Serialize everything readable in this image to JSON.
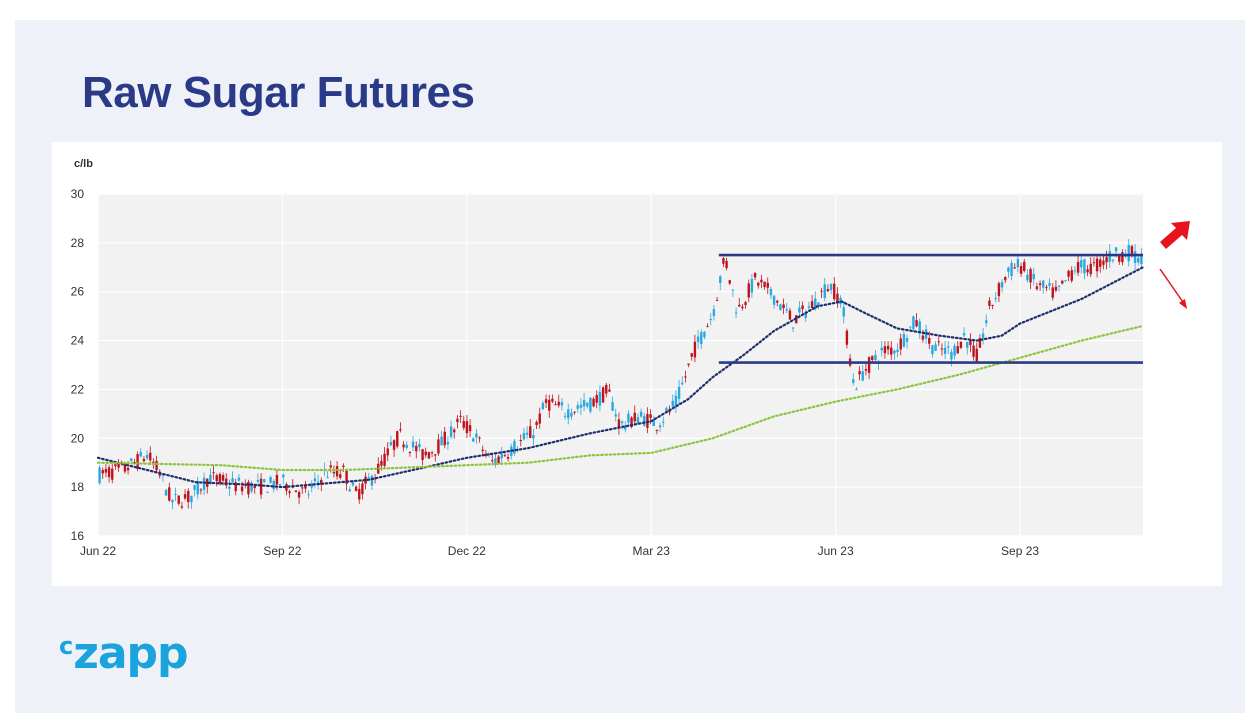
{
  "page": {
    "title": "Raw Sugar Futures",
    "logo_prefix": "c",
    "logo_main": "zapp",
    "logo_color": "#1aa3dc",
    "title_color": "#2b3a87"
  },
  "chart_data": {
    "type": "candlestick",
    "title": "",
    "ylabel": "c/lb",
    "xlabel": "",
    "ylim": [
      16,
      30
    ],
    "yticks": [
      16,
      18,
      20,
      22,
      24,
      26,
      28,
      30
    ],
    "xlim": [
      0,
      17
    ],
    "xticks": [
      {
        "label": "Jun 22",
        "value": 0
      },
      {
        "label": "Sep 22",
        "value": 3
      },
      {
        "label": "Dec 22",
        "value": 6
      },
      {
        "label": "Mar 23",
        "value": 9
      },
      {
        "label": "Jun 23",
        "value": 12
      },
      {
        "label": "Sep 23",
        "value": 15
      }
    ],
    "grid": true,
    "colors": {
      "up": "#29a8e0",
      "down": "#c0121b",
      "ma_short": "#1f2f6e",
      "ma_long": "#8cc63f",
      "range_lines": "#2b3a87",
      "arrow_up": "#e8141b",
      "arrow_down": "#e8141b"
    },
    "price_path": [
      [
        0,
        18.5
      ],
      [
        0.4,
        18.7
      ],
      [
        0.8,
        19.3
      ],
      [
        1.0,
        18.6
      ],
      [
        1.2,
        17.4
      ],
      [
        1.5,
        17.6
      ],
      [
        1.8,
        18.4
      ],
      [
        2.2,
        18.1
      ],
      [
        2.6,
        18.0
      ],
      [
        3.0,
        18.2
      ],
      [
        3.4,
        17.7
      ],
      [
        3.7,
        18.6
      ],
      [
        4.0,
        18.6
      ],
      [
        4.2,
        17.7
      ],
      [
        4.5,
        18.5
      ],
      [
        4.9,
        20.1
      ],
      [
        5.3,
        19.3
      ],
      [
        5.6,
        19.8
      ],
      [
        5.9,
        20.7
      ],
      [
        6.1,
        20.2
      ],
      [
        6.4,
        19.0
      ],
      [
        6.8,
        19.7
      ],
      [
        7.1,
        20.3
      ],
      [
        7.3,
        21.5
      ],
      [
        7.6,
        21.1
      ],
      [
        8.0,
        21.4
      ],
      [
        8.3,
        21.9
      ],
      [
        8.5,
        20.5
      ],
      [
        8.8,
        20.9
      ],
      [
        9.1,
        20.6
      ],
      [
        9.4,
        21.4
      ],
      [
        9.7,
        23.6
      ],
      [
        10.0,
        25.1
      ],
      [
        10.2,
        27.4
      ],
      [
        10.4,
        25.2
      ],
      [
        10.7,
        26.5
      ],
      [
        11.0,
        25.8
      ],
      [
        11.3,
        24.8
      ],
      [
        11.6,
        25.4
      ],
      [
        11.9,
        26.3
      ],
      [
        12.1,
        25.6
      ],
      [
        12.3,
        22.1
      ],
      [
        12.5,
        22.9
      ],
      [
        12.8,
        23.6
      ],
      [
        13.0,
        23.7
      ],
      [
        13.3,
        24.8
      ],
      [
        13.6,
        23.7
      ],
      [
        13.9,
        23.5
      ],
      [
        14.1,
        24.2
      ],
      [
        14.3,
        23.3
      ],
      [
        14.5,
        25.3
      ],
      [
        14.8,
        26.8
      ],
      [
        15.0,
        27.1
      ],
      [
        15.3,
        26.2
      ],
      [
        15.6,
        25.9
      ],
      [
        15.9,
        27.0
      ],
      [
        16.2,
        27.0
      ],
      [
        16.5,
        27.5
      ],
      [
        16.8,
        27.6
      ],
      [
        17.0,
        27.3
      ]
    ],
    "series": [
      {
        "values": [
          [
            0,
            19.2
          ],
          [
            1.6,
            18.2
          ],
          [
            2.5,
            18.1
          ],
          [
            3.0,
            18.0
          ],
          [
            4.4,
            18.3
          ],
          [
            5.3,
            18.8
          ],
          [
            6.0,
            19.2
          ],
          [
            7.0,
            19.6
          ],
          [
            8.0,
            20.2
          ],
          [
            9.0,
            20.7
          ],
          [
            9.6,
            21.6
          ],
          [
            10.0,
            22.5
          ],
          [
            10.5,
            23.4
          ],
          [
            11.0,
            24.4
          ],
          [
            11.7,
            25.4
          ],
          [
            12.1,
            25.6
          ],
          [
            12.5,
            25.1
          ],
          [
            13.0,
            24.5
          ],
          [
            13.7,
            24.2
          ],
          [
            14.3,
            24.0
          ],
          [
            14.7,
            24.2
          ],
          [
            15.0,
            24.7
          ],
          [
            16.0,
            25.7
          ],
          [
            17.0,
            27.0
          ]
        ]
      },
      {
        "values": [
          [
            0,
            19.0
          ],
          [
            2.0,
            18.9
          ],
          [
            3.0,
            18.7
          ],
          [
            4.0,
            18.7
          ],
          [
            5.0,
            18.8
          ],
          [
            6.0,
            18.9
          ],
          [
            7.0,
            19.0
          ],
          [
            8.0,
            19.3
          ],
          [
            9.0,
            19.4
          ],
          [
            10.0,
            20.0
          ],
          [
            11.0,
            20.9
          ],
          [
            12.0,
            21.5
          ],
          [
            13.0,
            22.0
          ],
          [
            14.0,
            22.6
          ],
          [
            15.0,
            23.3
          ],
          [
            16.0,
            24.0
          ],
          [
            17.0,
            24.6
          ]
        ]
      }
    ],
    "resistance": {
      "value": 27.5,
      "x_range": [
        10.1,
        17.0
      ]
    },
    "support": {
      "value": 23.1,
      "x_range": [
        10.1,
        17.0
      ]
    },
    "outlook_arrows": [
      "up",
      "down"
    ]
  }
}
